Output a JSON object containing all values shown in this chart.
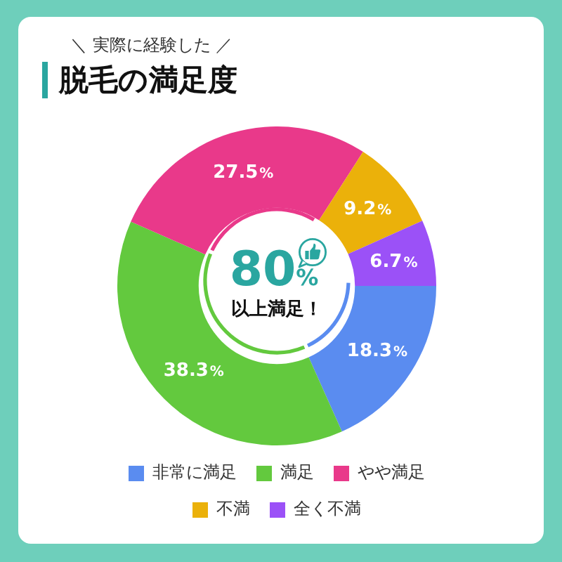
{
  "chart_data": {
    "type": "donut",
    "title": "脱毛の満足度",
    "subtitle": "＼ 実際に経験した ／",
    "categories": [
      "非常に満足",
      "満足",
      "やや満足",
      "不満",
      "全く不満"
    ],
    "values": [
      18.3,
      38.3,
      27.5,
      9.2,
      6.7
    ],
    "colors": [
      "#5a8cf0",
      "#63c93e",
      "#e9398a",
      "#ebb10a",
      "#9b51f7"
    ],
    "value_labels": [
      "18.3%",
      "38.3%",
      "27.5%",
      "9.2%",
      "6.7%"
    ],
    "annotations": [
      "80%",
      "以上満足！"
    ],
    "legend": "bottom"
  }
}
